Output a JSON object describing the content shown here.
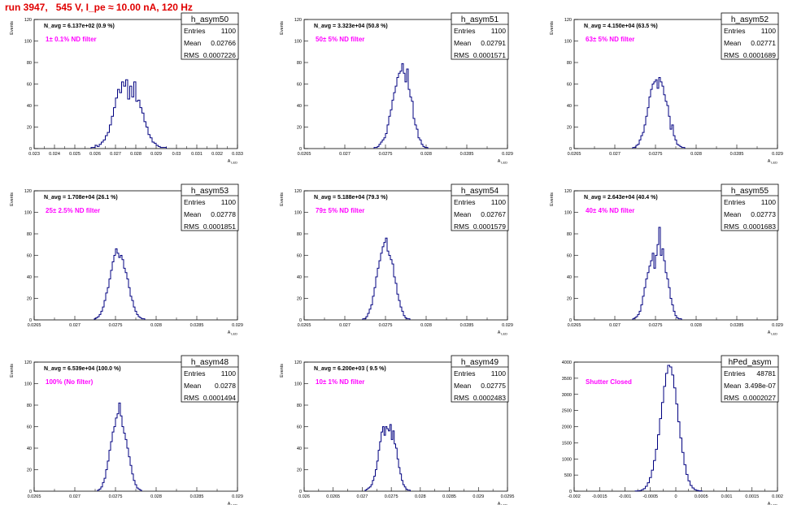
{
  "page_title": "run 3947,   545 V, I_pe ≈ 10.00 nA, 120 Hz",
  "colors": {
    "title": "#e00000",
    "annotation": "#ff00ff",
    "histogram": "#000080",
    "axes": "#000000"
  },
  "stat_labels": {
    "entries": "Entries",
    "mean": "Mean",
    "rms": "RMS"
  },
  "chart_data": [
    {
      "type": "bar",
      "name": "h_asym50",
      "ylabel": "Events",
      "xlabel": "A_LED",
      "navg": "N_avg = 6.137e+02 (0.9 %)",
      "annotation": "1± 0.1% ND filter",
      "stats": {
        "entries": "1100",
        "mean": "0.02766",
        "rms": "0.0007226"
      },
      "xlim": [
        0.023,
        0.033
      ],
      "ylim": [
        0,
        120
      ],
      "xticks": [
        "0.023",
        "0.024",
        "0.025",
        "0.026",
        "0.027",
        "0.028",
        "0.029",
        "0.03",
        "0.031",
        "0.032",
        "0.033"
      ],
      "yticks": [
        "0",
        "20",
        "40",
        "60",
        "80",
        "100",
        "120"
      ],
      "bin_start": 0.0258,
      "bin_width": 0.0001,
      "values": [
        1,
        1,
        3,
        2,
        4,
        6,
        8,
        12,
        15,
        22,
        30,
        38,
        47,
        55,
        52,
        62,
        58,
        64,
        46,
        58,
        48,
        62,
        44,
        45,
        38,
        33,
        25,
        20,
        13,
        10,
        6,
        5,
        3,
        2,
        1,
        1,
        1
      ]
    },
    {
      "type": "bar",
      "name": "h_asym51",
      "ylabel": "Events",
      "xlabel": "A_LED",
      "navg": "N_avg = 3.323e+04 (50.8 %)",
      "annotation": "50± 5% ND filter",
      "stats": {
        "entries": "1100",
        "mean": "0.02791",
        "rms": "0.0001571"
      },
      "xlim": [
        0.0265,
        0.029
      ],
      "ylim": [
        0,
        120
      ],
      "xticks": [
        "0.0265",
        "0.027",
        "0.0275",
        "0.028",
        "0.0285",
        "0.029"
      ],
      "yticks": [
        "0",
        "20",
        "40",
        "60",
        "80",
        "100",
        "120"
      ],
      "bin_start": 0.02736,
      "bin_width": 2e-05,
      "values": [
        1,
        1,
        2,
        4,
        6,
        8,
        10,
        14,
        22,
        30,
        36,
        45,
        52,
        58,
        66,
        70,
        72,
        79,
        70,
        62,
        74,
        55,
        48,
        44,
        28,
        22,
        18,
        10,
        8,
        4,
        2,
        1,
        1
      ]
    },
    {
      "type": "bar",
      "name": "h_asym52",
      "ylabel": "Events",
      "xlabel": "A_LED",
      "navg": "N_avg = 4.150e+04 (63.5 %)",
      "annotation": "63± 5% ND filter",
      "stats": {
        "entries": "1100",
        "mean": "0.02771",
        "rms": "0.0001689"
      },
      "xlim": [
        0.0265,
        0.029
      ],
      "ylim": [
        0,
        120
      ],
      "xticks": [
        "0.0265",
        "0.027",
        "0.0275",
        "0.028",
        "0.0285",
        "0.029"
      ],
      "yticks": [
        "0",
        "20",
        "40",
        "60",
        "80",
        "100",
        "120"
      ],
      "bin_start": 0.02722,
      "bin_width": 2e-05,
      "values": [
        1,
        1,
        3,
        4,
        8,
        12,
        15,
        22,
        30,
        38,
        48,
        55,
        60,
        62,
        64,
        56,
        66,
        62,
        58,
        50,
        44,
        40,
        30,
        18,
        22,
        12,
        8,
        4,
        3,
        2,
        1,
        1
      ]
    },
    {
      "type": "bar",
      "name": "h_asym53",
      "ylabel": "Events",
      "xlabel": "A_LED",
      "navg": "N_avg = 1.708e+04 (26.1 %)",
      "annotation": "25± 2.5% ND filter",
      "stats": {
        "entries": "1100",
        "mean": "0.02778",
        "rms": "0.0001851"
      },
      "xlim": [
        0.0265,
        0.029
      ],
      "ylim": [
        0,
        120
      ],
      "xticks": [
        "0.0265",
        "0.027",
        "0.0275",
        "0.028",
        "0.0285",
        "0.029"
      ],
      "yticks": [
        "0",
        "20",
        "40",
        "60",
        "80",
        "100",
        "120"
      ],
      "bin_start": 0.02724,
      "bin_width": 2e-05,
      "values": [
        1,
        2,
        3,
        5,
        8,
        12,
        18,
        25,
        30,
        38,
        46,
        54,
        60,
        66,
        62,
        58,
        60,
        56,
        48,
        44,
        38,
        30,
        22,
        18,
        12,
        8,
        5,
        3,
        2,
        1,
        1
      ]
    },
    {
      "type": "bar",
      "name": "h_asym54",
      "ylabel": "Events",
      "xlabel": "A_LED",
      "navg": "N_avg = 5.188e+04 (79.3 %)",
      "annotation": "79± 5% ND filter",
      "stats": {
        "entries": "1100",
        "mean": "0.02767",
        "rms": "0.0001579"
      },
      "xlim": [
        0.0265,
        0.029
      ],
      "ylim": [
        0,
        120
      ],
      "xticks": [
        "0.0265",
        "0.027",
        "0.0275",
        "0.028",
        "0.0285",
        "0.029"
      ],
      "yticks": [
        "0",
        "20",
        "40",
        "60",
        "80",
        "100",
        "120"
      ],
      "bin_start": 0.02722,
      "bin_width": 2e-05,
      "values": [
        1,
        1,
        3,
        6,
        10,
        14,
        22,
        30,
        40,
        48,
        55,
        62,
        68,
        72,
        76,
        64,
        60,
        56,
        52,
        40,
        34,
        24,
        18,
        12,
        8,
        4,
        2,
        1,
        1
      ]
    },
    {
      "type": "bar",
      "name": "h_asym55",
      "ylabel": "Events",
      "xlabel": "A_LED",
      "navg": "N_avg = 2.643e+04 (40.4 %)",
      "annotation": "40± 4% ND filter",
      "stats": {
        "entries": "1100",
        "mean": "0.02773",
        "rms": "0.0001683"
      },
      "xlim": [
        0.0265,
        0.029
      ],
      "ylim": [
        0,
        120
      ],
      "xticks": [
        "0.0265",
        "0.027",
        "0.0275",
        "0.028",
        "0.0285",
        "0.029"
      ],
      "yticks": [
        "0",
        "20",
        "40",
        "60",
        "80",
        "100",
        "120"
      ],
      "bin_start": 0.02722,
      "bin_width": 2e-05,
      "values": [
        1,
        2,
        3,
        5,
        8,
        14,
        22,
        30,
        38,
        44,
        50,
        55,
        62,
        48,
        60,
        70,
        86,
        60,
        66,
        55,
        44,
        38,
        30,
        20,
        14,
        8,
        4,
        2,
        1,
        1
      ]
    },
    {
      "type": "bar",
      "name": "h_asym48",
      "ylabel": "Events",
      "xlabel": "A_LED",
      "navg": "N_avg = 6.539e+04 (100.0 %)",
      "annotation": "100% (No filter)",
      "stats": {
        "entries": "1100",
        "mean": "0.0278",
        "rms": "0.0001494"
      },
      "xlim": [
        0.0265,
        0.029
      ],
      "ylim": [
        0,
        120
      ],
      "xticks": [
        "0.0265",
        "0.027",
        "0.0275",
        "0.028",
        "0.0285",
        "0.029"
      ],
      "yticks": [
        "0",
        "20",
        "40",
        "60",
        "80",
        "100",
        "120"
      ],
      "bin_start": 0.02728,
      "bin_width": 2e-05,
      "values": [
        1,
        2,
        4,
        8,
        12,
        20,
        28,
        38,
        46,
        55,
        60,
        68,
        72,
        82,
        70,
        60,
        54,
        48,
        40,
        32,
        24,
        16,
        10,
        6,
        3,
        2,
        1
      ]
    },
    {
      "type": "bar",
      "name": "h_asym49",
      "ylabel": "Events",
      "xlabel": "A_LED",
      "navg": "N_avg = 6.200e+03 ( 9.5 %)",
      "annotation": "10± 1% ND filter",
      "stats": {
        "entries": "1100",
        "mean": "0.02775",
        "rms": "0.0002483"
      },
      "xlim": [
        0.026,
        0.0295
      ],
      "ylim": [
        0,
        120
      ],
      "xticks": [
        "0.026",
        "0.0265",
        "0.027",
        "0.0275",
        "0.028",
        "0.0285",
        "0.029",
        "0.0295"
      ],
      "yticks": [
        "0",
        "20",
        "40",
        "60",
        "80",
        "100",
        "120"
      ],
      "bin_start": 0.02705,
      "bin_width": 2.5e-05,
      "values": [
        1,
        2,
        3,
        4,
        6,
        10,
        14,
        20,
        28,
        38,
        46,
        55,
        60,
        52,
        60,
        58,
        56,
        62,
        48,
        56,
        44,
        40,
        30,
        22,
        16,
        10,
        6,
        4,
        2,
        1,
        1
      ]
    },
    {
      "type": "bar",
      "name": "hPed_asym",
      "ylabel": "",
      "xlabel": "A_LED",
      "navg": "",
      "annotation": "Shutter Closed",
      "stats": {
        "entries": "48781",
        "mean": "3.498e-07",
        "rms": "0.0002027"
      },
      "xlim": [
        -0.002,
        0.002
      ],
      "ylim": [
        0,
        4000
      ],
      "xticks": [
        "-0.002",
        "-0.0015",
        "-0.001",
        "-0.0005",
        "0",
        "0.0005",
        "0.001",
        "0.0015",
        "0.002"
      ],
      "yticks": [
        "0",
        "500",
        "1000",
        "1500",
        "2000",
        "2500",
        "3000",
        "3500",
        "4000"
      ],
      "bin_start": -0.0008,
      "bin_width": 4e-05,
      "values": [
        5,
        10,
        20,
        40,
        80,
        150,
        260,
        420,
        650,
        950,
        1300,
        1750,
        2250,
        2750,
        3250,
        3650,
        3900,
        3850,
        3600,
        3200,
        2700,
        2150,
        1650,
        1200,
        820,
        520,
        320,
        180,
        100,
        50,
        25,
        12,
        6
      ]
    }
  ]
}
